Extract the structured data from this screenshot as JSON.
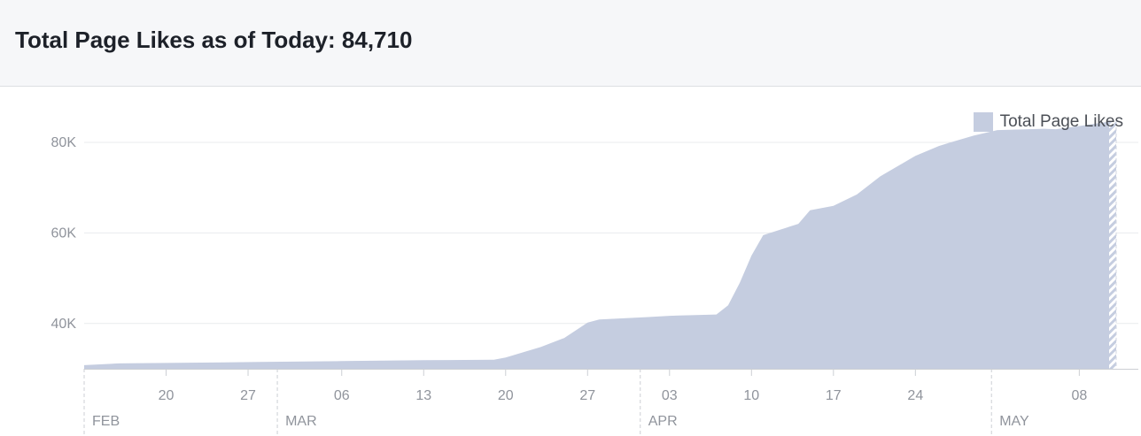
{
  "header": {
    "title": "Total Page Likes as of Today: 84,710"
  },
  "colors": {
    "area": "#c5cde0",
    "grid": "#e9ebee",
    "axis": "#cccfd4",
    "tick_text": "#90949c"
  },
  "chart_data": {
    "type": "area",
    "legend": {
      "label": "Total Page Likes",
      "placement": "top-right"
    },
    "series": [
      {
        "name": "Total Page Likes",
        "x": [
          "2016-02-13",
          "2016-02-16",
          "2016-02-21",
          "2016-02-28",
          "2016-03-06",
          "2016-03-13",
          "2016-03-19",
          "2016-03-20",
          "2016-03-23",
          "2016-03-25",
          "2016-03-27",
          "2016-03-28",
          "2016-04-01",
          "2016-04-03",
          "2016-04-07",
          "2016-04-08",
          "2016-04-09",
          "2016-04-10",
          "2016-04-11",
          "2016-04-14",
          "2016-04-15",
          "2016-04-17",
          "2016-04-19",
          "2016-04-21",
          "2016-04-24",
          "2016-04-26",
          "2016-04-27",
          "2016-04-29",
          "2016-05-01",
          "2016-05-05",
          "2016-05-06",
          "2016-05-08",
          "2016-05-11"
        ],
        "y": [
          30800,
          31200,
          31300,
          31500,
          31700,
          31900,
          32000,
          32500,
          34800,
          36800,
          40200,
          40900,
          41400,
          41700,
          42000,
          44000,
          49000,
          55000,
          59500,
          62000,
          65000,
          66000,
          68500,
          72500,
          77000,
          79200,
          80000,
          81500,
          82700,
          83000,
          82900,
          83600,
          84710
        ]
      }
    ],
    "y_ticks": [
      {
        "value": 40000,
        "label": "40K"
      },
      {
        "value": 60000,
        "label": "60K"
      },
      {
        "value": 80000,
        "label": "80K"
      }
    ],
    "ylim": [
      30000,
      88000
    ],
    "xlim": [
      "2016-02-13",
      "2016-05-11"
    ],
    "x_ticks": [
      {
        "date": "2016-02-20",
        "label": "20"
      },
      {
        "date": "2016-02-27",
        "label": "27"
      },
      {
        "date": "2016-03-06",
        "label": "06"
      },
      {
        "date": "2016-03-13",
        "label": "13"
      },
      {
        "date": "2016-03-20",
        "label": "20"
      },
      {
        "date": "2016-03-27",
        "label": "27"
      },
      {
        "date": "2016-04-03",
        "label": "03"
      },
      {
        "date": "2016-04-10",
        "label": "10"
      },
      {
        "date": "2016-04-17",
        "label": "17"
      },
      {
        "date": "2016-04-24",
        "label": "24"
      },
      {
        "date": "2016-05-08",
        "label": "08"
      }
    ],
    "month_markers": [
      {
        "date": "2016-02-13",
        "label": "FEB"
      },
      {
        "date": "2016-03-01",
        "label": "MAR"
      },
      {
        "date": "2016-04-01",
        "label": "APR"
      },
      {
        "date": "2016-05-01",
        "label": "MAY"
      }
    ],
    "grid": true,
    "partial_period_hatch": true
  }
}
